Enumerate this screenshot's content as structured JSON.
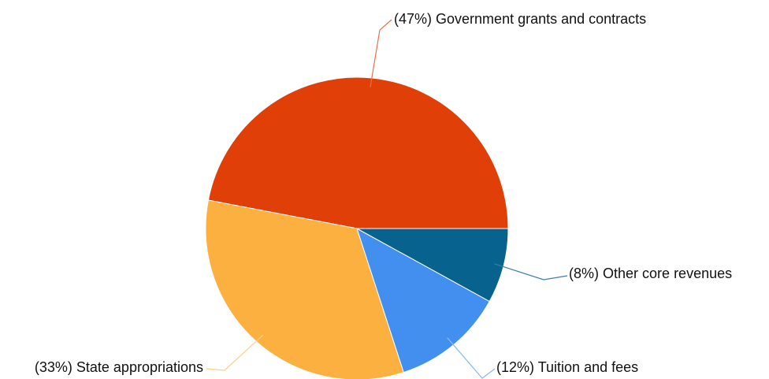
{
  "chart_data": {
    "type": "pie",
    "categories": [
      "Government grants and contracts",
      "State appropriations",
      "Tuition and fees",
      "Other core revenues"
    ],
    "values": [
      47,
      33,
      12,
      8
    ],
    "value_labels": [
      "(47%)",
      "(33%)",
      "(12%)",
      "(8%)"
    ],
    "colors": [
      "#e04008",
      "#fbb040",
      "#428ff0",
      "#07628e"
    ],
    "leader_colors": [
      "#e8704a",
      "#fcd088",
      "#8cb8f4",
      "#3a7fa0"
    ]
  }
}
